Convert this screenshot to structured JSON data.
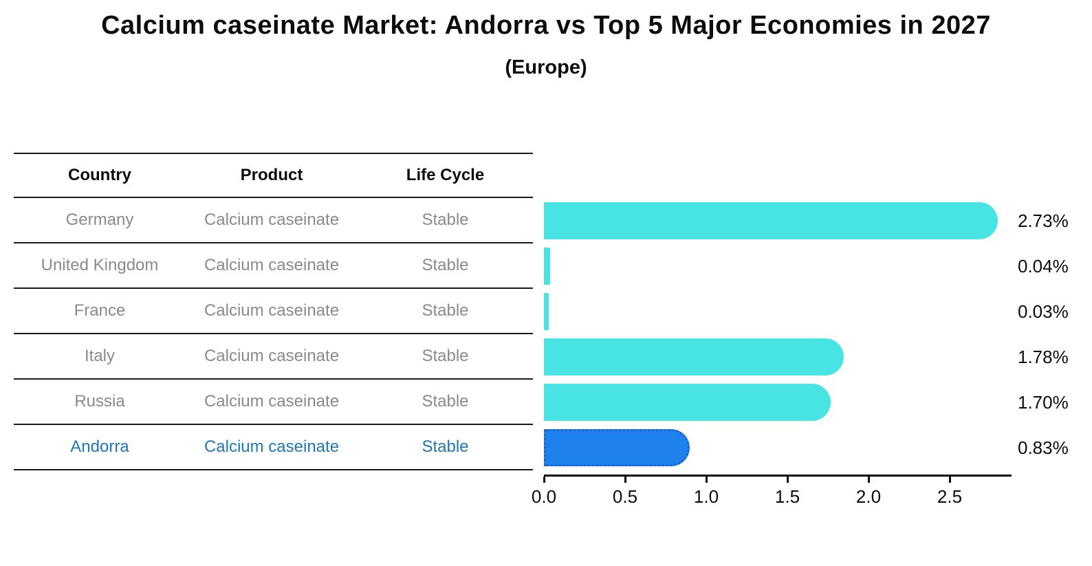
{
  "title": "Calcium caseinate Market: Andorra vs Top 5 Major Economies in 2027",
  "subtitle": "(Europe)",
  "table": {
    "headers": [
      "Country",
      "Product",
      "Life Cycle"
    ],
    "rows": [
      {
        "country": "Germany",
        "product": "Calcium caseinate",
        "life_cycle": "Stable",
        "highlight": false
      },
      {
        "country": "United Kingdom",
        "product": "Calcium caseinate",
        "life_cycle": "Stable",
        "highlight": false
      },
      {
        "country": "France",
        "product": "Calcium caseinate",
        "life_cycle": "Stable",
        "highlight": false
      },
      {
        "country": "Italy",
        "product": "Calcium caseinate",
        "life_cycle": "Stable",
        "highlight": false
      },
      {
        "country": "Russia",
        "product": "Calcium caseinate",
        "life_cycle": "Stable",
        "highlight": false
      },
      {
        "country": "Andorra",
        "product": "Calcium caseinate",
        "life_cycle": "Stable",
        "highlight": true
      }
    ]
  },
  "chart_data": {
    "type": "bar",
    "orientation": "horizontal",
    "title": "Calcium caseinate Market: Andorra vs Top 5 Major Economies in 2027",
    "subtitle": "(Europe)",
    "categories": [
      "Germany",
      "United Kingdom",
      "France",
      "Italy",
      "Russia",
      "Andorra"
    ],
    "values": [
      2.73,
      0.04,
      0.03,
      1.78,
      1.7,
      0.83
    ],
    "value_labels": [
      "2.73%",
      "0.04%",
      "0.03%",
      "1.78%",
      "1.70%",
      "0.83%"
    ],
    "x_tick_labels": [
      "0.0",
      "0.5",
      "1.0",
      "1.5",
      "2.0",
      "2.5"
    ],
    "x_tick_values": [
      0.0,
      0.5,
      1.0,
      1.5,
      2.0,
      2.5
    ],
    "xlim": [
      0,
      2.88
    ],
    "grid": false,
    "legend": false,
    "highlight_index": 5,
    "colors": {
      "bar": "#48E4E4",
      "highlight_bar": "#1E82EE",
      "highlight_bar_border": "#1A66CC",
      "highlight_text": "#1F77B4",
      "row_text": "#8A8A8A",
      "header_text": "#0D0D0D",
      "axis": "#0D0D0D"
    }
  }
}
